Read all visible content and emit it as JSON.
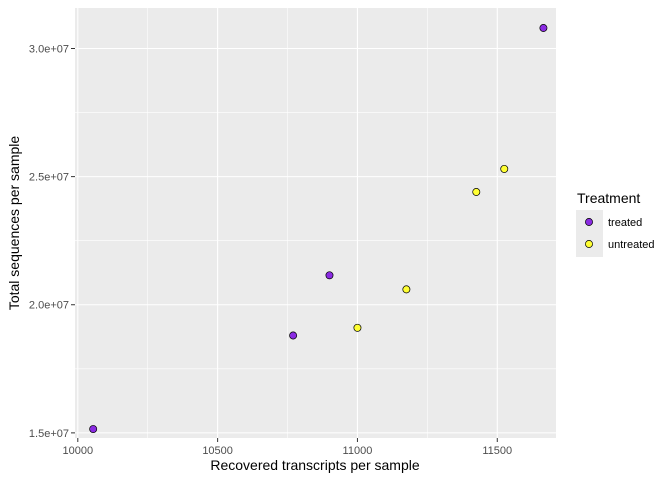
{
  "chart_data": {
    "type": "scatter",
    "title": "",
    "xlabel": "Recovered transcripts per sample",
    "ylabel": "Total sequences per sample",
    "xlim": [
      9990,
      11710
    ],
    "ylim": [
      14800000,
      31580000
    ],
    "x_ticks": [
      {
        "value": 10000,
        "label": "10000"
      },
      {
        "value": 10500,
        "label": "10500"
      },
      {
        "value": 11000,
        "label": "11000"
      },
      {
        "value": 11500,
        "label": "11500"
      }
    ],
    "y_ticks": [
      {
        "value": 15000000,
        "label": "1.5e+07"
      },
      {
        "value": 20000000,
        "label": "2.0e+07"
      },
      {
        "value": 25000000,
        "label": "2.5e+07"
      },
      {
        "value": 30000000,
        "label": "3.0e+07"
      }
    ],
    "grid": true,
    "legend": {
      "title": "Treatment",
      "placement": "right",
      "entries": [
        {
          "label": "treated",
          "color": "#8A2BE2"
        },
        {
          "label": "untreated",
          "color": "#FFFF33"
        }
      ]
    },
    "series": [
      {
        "name": "treated",
        "color": "#8A2BE2",
        "points": [
          {
            "x": 10055,
            "y": 15150000
          },
          {
            "x": 10770,
            "y": 18800000
          },
          {
            "x": 10900,
            "y": 21150000
          },
          {
            "x": 11665,
            "y": 30800000
          }
        ]
      },
      {
        "name": "untreated",
        "color": "#FFFF33",
        "points": [
          {
            "x": 11000,
            "y": 19100000
          },
          {
            "x": 11175,
            "y": 20600000
          },
          {
            "x": 11425,
            "y": 24400000
          },
          {
            "x": 11525,
            "y": 25300000
          }
        ]
      }
    ],
    "panel_background": "#EBEBEB",
    "grid_color": "#FFFFFF"
  }
}
